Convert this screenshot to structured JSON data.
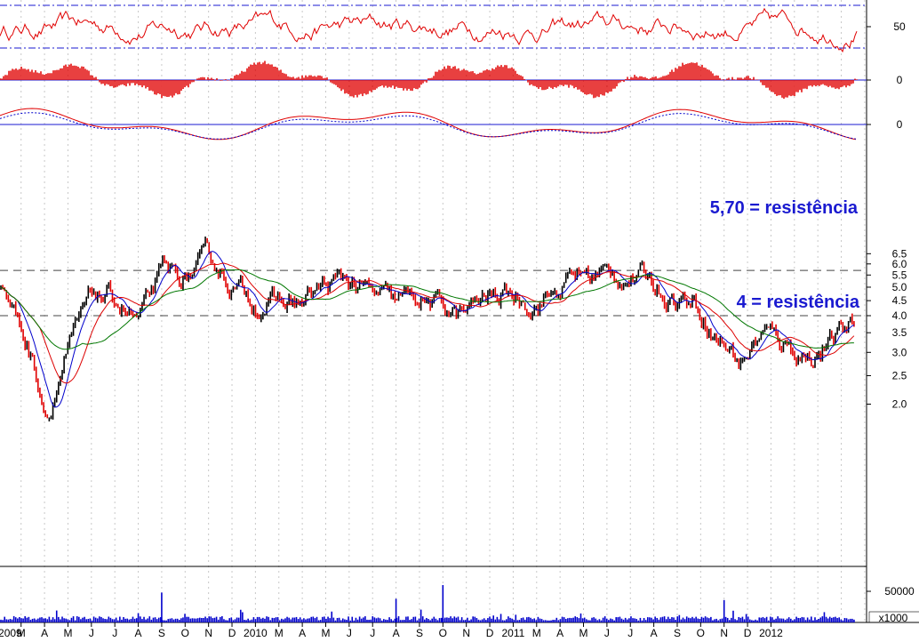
{
  "chart_data": {
    "type": "line",
    "panels": [
      {
        "id": "oscillator-1",
        "y_ticks": [
          "50",
          "0"
        ],
        "reference_lines": [
          70,
          30
        ]
      },
      {
        "id": "oscillator-2",
        "y_ticks": [
          "0"
        ]
      },
      {
        "id": "oscillator-3",
        "y_ticks": [
          "0"
        ]
      },
      {
        "id": "price",
        "scale": "log",
        "ylim": [
          1.75,
          6.8
        ],
        "y_ticks": [
          "6.5",
          "6.0",
          "5.5",
          "5.0",
          "4.5",
          "4.0",
          "3.5",
          "3.0",
          "2.5",
          "2.0"
        ],
        "reference_lines": [
          5.7,
          4.0
        ]
      },
      {
        "id": "volume",
        "y_ticks": [
          "50000"
        ],
        "unit": "x1000"
      }
    ],
    "x_tick_labels": [
      "2009",
      "M",
      "A",
      "M",
      "J",
      "J",
      "A",
      "S",
      "O",
      "N",
      "D",
      "2010",
      "M",
      "A",
      "M",
      "J",
      "J",
      "A",
      "S",
      "O",
      "N",
      "D",
      "2011",
      "M",
      "A",
      "M",
      "J",
      "J",
      "A",
      "S",
      "O",
      "N",
      "D",
      "2012"
    ],
    "price_keypoints": [
      {
        "x": "2009-01",
        "y": 5.2
      },
      {
        "x": "2009-02",
        "y": 3.4
      },
      {
        "x": "2009-03",
        "y": 1.8
      },
      {
        "x": "2009-04",
        "y": 3.1
      },
      {
        "x": "2009-05",
        "y": 4.7
      },
      {
        "x": "2009-06",
        "y": 4.5
      },
      {
        "x": "2009-07",
        "y": 3.8
      },
      {
        "x": "2009-08",
        "y": 5.5
      },
      {
        "x": "2009-09",
        "y": 5.3
      },
      {
        "x": "2009-10",
        "y": 6.2
      },
      {
        "x": "2009-11",
        "y": 5.1
      },
      {
        "x": "2009-12",
        "y": 4.5
      },
      {
        "x": "2010-01",
        "y": 4.4
      },
      {
        "x": "2010-02",
        "y": 4.4
      },
      {
        "x": "2010-03",
        "y": 5.0
      },
      {
        "x": "2010-04",
        "y": 5.3
      },
      {
        "x": "2010-05",
        "y": 4.7
      },
      {
        "x": "2010-06",
        "y": 4.4
      },
      {
        "x": "2010-07",
        "y": 4.6
      },
      {
        "x": "2010-08",
        "y": 4.3
      },
      {
        "x": "2010-09",
        "y": 4.0
      },
      {
        "x": "2010-10",
        "y": 4.6
      },
      {
        "x": "2010-11",
        "y": 4.7
      },
      {
        "x": "2010-12",
        "y": 4.5
      },
      {
        "x": "2011-01",
        "y": 4.8
      },
      {
        "x": "2011-02",
        "y": 5.6
      },
      {
        "x": "2011-03",
        "y": 5.5
      },
      {
        "x": "2011-04",
        "y": 5.5
      },
      {
        "x": "2011-05",
        "y": 5.3
      },
      {
        "x": "2011-06",
        "y": 4.7
      },
      {
        "x": "2011-07",
        "y": 4.5
      },
      {
        "x": "2011-08",
        "y": 3.4
      },
      {
        "x": "2011-09",
        "y": 2.8
      },
      {
        "x": "2011-10",
        "y": 3.5
      },
      {
        "x": "2011-11",
        "y": 3.2
      },
      {
        "x": "2011-12",
        "y": 2.9
      },
      {
        "x": "2012-01",
        "y": 3.3
      },
      {
        "x": "2012-02",
        "y": 3.8
      }
    ],
    "volume_peaks": [
      {
        "x": "2009-07",
        "y": 15000
      },
      {
        "x": "2009-08",
        "y": 48000
      },
      {
        "x": "2010-06",
        "y": 38000
      },
      {
        "x": "2010-08",
        "y": 60000
      },
      {
        "x": "2011-08",
        "y": 36000
      }
    ],
    "annotations": [
      {
        "text": "5,70 = resistência",
        "color": "#1a1ad0"
      },
      {
        "text": "4 = resistência",
        "color": "#1a1ad0"
      }
    ],
    "colors": {
      "price": "#000000",
      "down": "#e00000",
      "ma_fast": "#0000cc",
      "ma_mid": "#dd0000",
      "ma_slow": "#007700",
      "volume": "#0000cc",
      "osc": "#e00000"
    }
  }
}
